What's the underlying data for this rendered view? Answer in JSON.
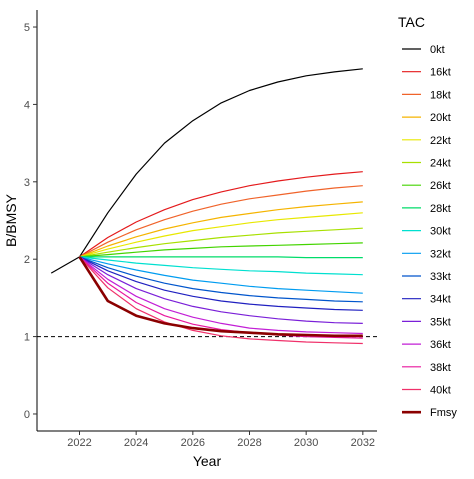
{
  "chart_data": {
    "type": "line",
    "xlabel": "Year",
    "ylabel": "B/BMSY",
    "xlim": [
      2020.5,
      2032.5
    ],
    "ylim": [
      -0.22,
      5.22
    ],
    "x_ticks": [
      2022,
      2024,
      2026,
      2028,
      2030,
      2032
    ],
    "y_ticks": [
      0,
      1,
      2,
      3,
      4,
      5
    ],
    "reference_line": {
      "y": 1,
      "style": "dashed",
      "color": "#000000"
    },
    "grid": false,
    "legend": {
      "title": "TAC",
      "placement": "right"
    },
    "series": [
      {
        "name": "0kt",
        "color": "#000000",
        "width": 1.2,
        "x": [
          2021,
          2022,
          2023,
          2024,
          2025,
          2026,
          2027,
          2028,
          2029,
          2030,
          2031,
          2032
        ],
        "y": [
          1.82,
          2.03,
          2.6,
          3.1,
          3.5,
          3.79,
          4.02,
          4.18,
          4.29,
          4.37,
          4.42,
          4.46
        ]
      },
      {
        "name": "16kt",
        "color": "#E41A1C",
        "width": 1.2,
        "x": [
          2022,
          2023,
          2024,
          2025,
          2026,
          2027,
          2028,
          2029,
          2030,
          2031,
          2032
        ],
        "y": [
          2.03,
          2.28,
          2.48,
          2.64,
          2.77,
          2.87,
          2.95,
          3.01,
          3.06,
          3.1,
          3.13
        ]
      },
      {
        "name": "18kt",
        "color": "#F0632A",
        "width": 1.2,
        "x": [
          2022,
          2023,
          2024,
          2025,
          2026,
          2027,
          2028,
          2029,
          2030,
          2031,
          2032
        ],
        "y": [
          2.03,
          2.22,
          2.38,
          2.51,
          2.62,
          2.71,
          2.78,
          2.83,
          2.88,
          2.92,
          2.95
        ]
      },
      {
        "name": "20kt",
        "color": "#F5B400",
        "width": 1.2,
        "x": [
          2022,
          2023,
          2024,
          2025,
          2026,
          2027,
          2028,
          2029,
          2030,
          2031,
          2032
        ],
        "y": [
          2.03,
          2.17,
          2.29,
          2.39,
          2.47,
          2.54,
          2.59,
          2.64,
          2.68,
          2.71,
          2.74
        ]
      },
      {
        "name": "22kt",
        "color": "#E8E800",
        "width": 1.2,
        "x": [
          2022,
          2023,
          2024,
          2025,
          2026,
          2027,
          2028,
          2029,
          2030,
          2031,
          2032
        ],
        "y": [
          2.03,
          2.13,
          2.22,
          2.3,
          2.37,
          2.42,
          2.47,
          2.51,
          2.54,
          2.57,
          2.6
        ]
      },
      {
        "name": "24kt",
        "color": "#A8E000",
        "width": 1.2,
        "x": [
          2022,
          2023,
          2024,
          2025,
          2026,
          2027,
          2028,
          2029,
          2030,
          2031,
          2032
        ],
        "y": [
          2.03,
          2.09,
          2.15,
          2.2,
          2.24,
          2.28,
          2.31,
          2.34,
          2.36,
          2.38,
          2.4
        ]
      },
      {
        "name": "26kt",
        "color": "#44D400",
        "width": 1.2,
        "x": [
          2022,
          2023,
          2024,
          2025,
          2026,
          2027,
          2028,
          2029,
          2030,
          2031,
          2032
        ],
        "y": [
          2.03,
          2.06,
          2.09,
          2.12,
          2.14,
          2.16,
          2.17,
          2.18,
          2.19,
          2.2,
          2.21
        ]
      },
      {
        "name": "28kt",
        "color": "#00DC6A",
        "width": 1.2,
        "x": [
          2022,
          2023,
          2024,
          2025,
          2026,
          2027,
          2028,
          2029,
          2030,
          2031,
          2032
        ],
        "y": [
          2.03,
          2.03,
          2.03,
          2.03,
          2.03,
          2.03,
          2.03,
          2.03,
          2.02,
          2.02,
          2.02
        ]
      },
      {
        "name": "30kt",
        "color": "#00E0D0",
        "width": 1.2,
        "x": [
          2022,
          2023,
          2024,
          2025,
          2026,
          2027,
          2028,
          2029,
          2030,
          2031,
          2032
        ],
        "y": [
          2.03,
          1.99,
          1.95,
          1.92,
          1.89,
          1.87,
          1.85,
          1.84,
          1.82,
          1.81,
          1.8
        ]
      },
      {
        "name": "32kt",
        "color": "#009CF0",
        "width": 1.2,
        "x": [
          2022,
          2023,
          2024,
          2025,
          2026,
          2027,
          2028,
          2029,
          2030,
          2031,
          2032
        ],
        "y": [
          2.03,
          1.94,
          1.86,
          1.79,
          1.73,
          1.69,
          1.65,
          1.62,
          1.6,
          1.58,
          1.56
        ]
      },
      {
        "name": "33kt",
        "color": "#0055CC",
        "width": 1.2,
        "x": [
          2022,
          2023,
          2024,
          2025,
          2026,
          2027,
          2028,
          2029,
          2030,
          2031,
          2032
        ],
        "y": [
          2.03,
          1.89,
          1.78,
          1.69,
          1.62,
          1.57,
          1.53,
          1.5,
          1.48,
          1.46,
          1.45
        ]
      },
      {
        "name": "34kt",
        "color": "#2020C0",
        "width": 1.2,
        "x": [
          2022,
          2023,
          2024,
          2025,
          2026,
          2027,
          2028,
          2029,
          2030,
          2031,
          2032
        ],
        "y": [
          2.03,
          1.85,
          1.71,
          1.6,
          1.52,
          1.46,
          1.42,
          1.39,
          1.37,
          1.35,
          1.34
        ]
      },
      {
        "name": "35kt",
        "color": "#7A1FD8",
        "width": 1.2,
        "x": [
          2022,
          2023,
          2024,
          2025,
          2026,
          2027,
          2028,
          2029,
          2030,
          2031,
          2032
        ],
        "y": [
          2.03,
          1.8,
          1.62,
          1.49,
          1.39,
          1.32,
          1.27,
          1.23,
          1.2,
          1.18,
          1.17
        ]
      },
      {
        "name": "36kt",
        "color": "#C21FD6",
        "width": 1.2,
        "x": [
          2022,
          2023,
          2024,
          2025,
          2026,
          2027,
          2028,
          2029,
          2030,
          2031,
          2032
        ],
        "y": [
          2.03,
          1.74,
          1.52,
          1.36,
          1.25,
          1.17,
          1.11,
          1.08,
          1.06,
          1.05,
          1.04
        ]
      },
      {
        "name": "38kt",
        "color": "#E8179E",
        "width": 1.2,
        "x": [
          2022,
          2023,
          2024,
          2025,
          2026,
          2027,
          2028,
          2029,
          2030,
          2031,
          2032
        ],
        "y": [
          2.03,
          1.69,
          1.44,
          1.27,
          1.16,
          1.09,
          1.05,
          1.02,
          1.0,
          0.99,
          0.98
        ]
      },
      {
        "name": "40kt",
        "color": "#F0306A",
        "width": 1.2,
        "x": [
          2022,
          2023,
          2024,
          2025,
          2026,
          2027,
          2028,
          2029,
          2030,
          2031,
          2032
        ],
        "y": [
          2.03,
          1.63,
          1.36,
          1.19,
          1.08,
          1.01,
          0.97,
          0.95,
          0.93,
          0.92,
          0.91
        ]
      },
      {
        "name": "Fmsy",
        "color": "#8B0000",
        "width": 2.6,
        "x": [
          2022,
          2023,
          2024,
          2025,
          2026,
          2027,
          2028,
          2029,
          2030,
          2031,
          2032
        ],
        "y": [
          2.03,
          1.46,
          1.27,
          1.17,
          1.11,
          1.07,
          1.05,
          1.03,
          1.02,
          1.01,
          1.01
        ]
      }
    ]
  }
}
